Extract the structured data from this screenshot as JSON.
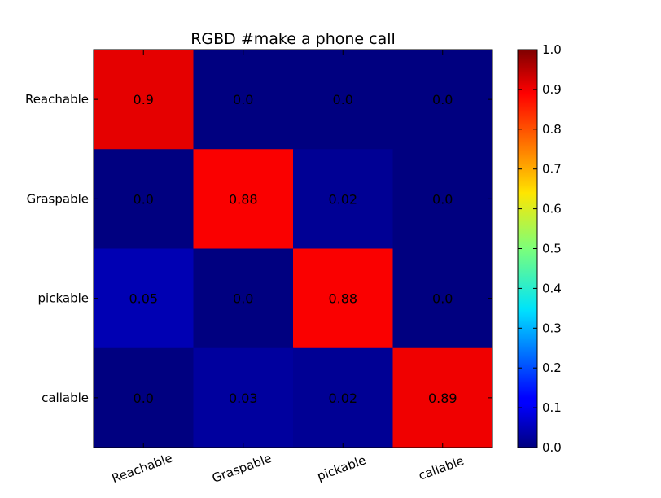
{
  "chart_data": {
    "type": "heatmap",
    "title": "RGBD #make a phone call",
    "rows": [
      "Reachable",
      "Graspable",
      "pickable",
      "callable"
    ],
    "columns": [
      "Reachable",
      "Graspable",
      "pickable",
      "callable"
    ],
    "values": [
      [
        0.9,
        0.0,
        0.0,
        0.0
      ],
      [
        0.0,
        0.88,
        0.02,
        0.0
      ],
      [
        0.05,
        0.0,
        0.88,
        0.0
      ],
      [
        0.0,
        0.03,
        0.02,
        0.89
      ]
    ],
    "cell_labels": [
      [
        "0.9",
        "0.0",
        "0.0",
        "0.0"
      ],
      [
        "0.0",
        "0.88",
        "0.02",
        "0.0"
      ],
      [
        "0.05",
        "0.0",
        "0.88",
        "0.0"
      ],
      [
        "0.0",
        "0.03",
        "0.02",
        "0.89"
      ]
    ],
    "colorbar": {
      "colormap": "jet",
      "range": [
        0.0,
        1.0
      ],
      "ticks": [
        "0.0",
        "0.1",
        "0.2",
        "0.3",
        "0.4",
        "0.5",
        "0.6",
        "0.7",
        "0.8",
        "0.9",
        "1.0"
      ]
    }
  }
}
